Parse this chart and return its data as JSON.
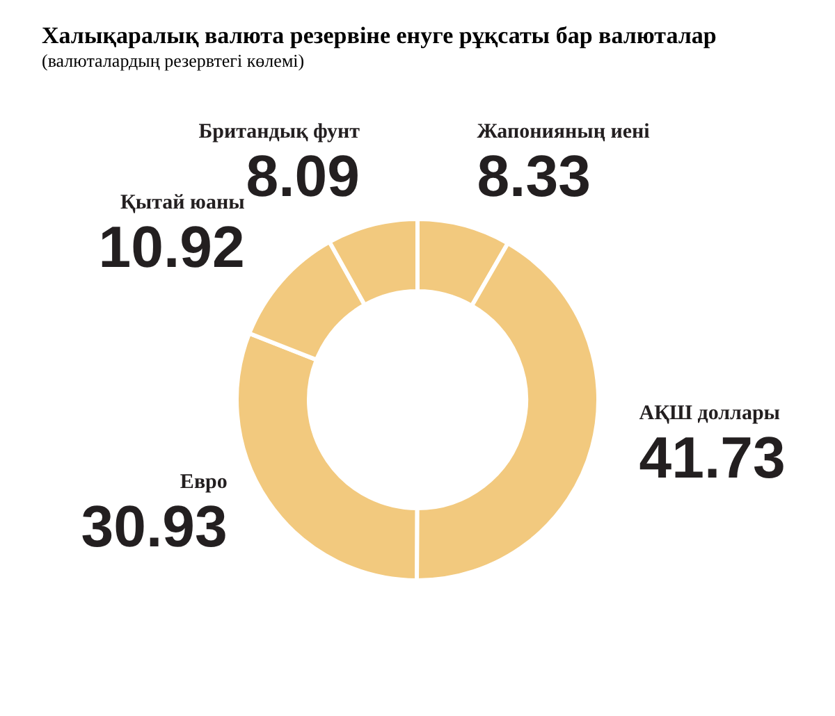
{
  "chart_data": {
    "type": "donut",
    "title": "Халықаралық валюта резервіне енуге рұқсаты бар валюталар",
    "subtitle": "(валюталардың резервтегі көлемі)",
    "categories": [
      "Жапонияның иені",
      "АҚШ доллары",
      "Евро",
      "Қытай юаны",
      "Британдық фунт"
    ],
    "values": [
      8.33,
      41.73,
      30.93,
      10.92,
      8.09
    ],
    "colors": [
      "#f2c97e",
      "#f2c97e",
      "#f2c97e",
      "#f2c97e",
      "#f2c97e"
    ],
    "data_labels": true
  }
}
